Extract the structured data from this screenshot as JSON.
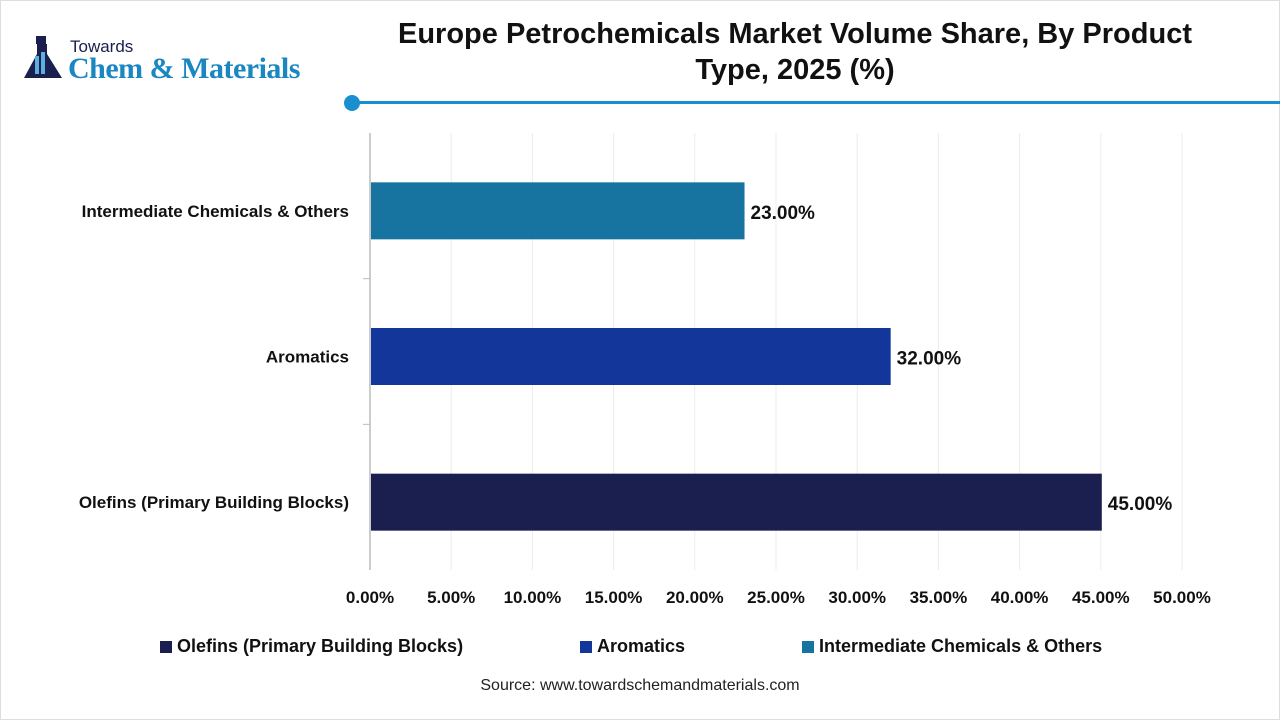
{
  "logo": {
    "line1": "Towards",
    "line2": "Chem & Materials"
  },
  "chart_data": {
    "type": "bar",
    "orientation": "horizontal",
    "title": "Europe Petrochemicals Market Volume Share, By Product Type, 2025 (%)",
    "categories": [
      "Olefins (Primary Building Blocks)",
      "Aromatics",
      "Intermediate Chemicals & Others"
    ],
    "values": [
      45,
      32,
      23
    ],
    "data_labels": [
      "45.00%",
      "32.00%",
      "23.00%"
    ],
    "colors": [
      "#1b1f4f",
      "#13369a",
      "#17739f"
    ],
    "xlim": [
      0,
      50
    ],
    "x_ticks": [
      "0.00%",
      "5.00%",
      "10.00%",
      "15.00%",
      "20.00%",
      "25.00%",
      "30.00%",
      "35.00%",
      "40.00%",
      "45.00%",
      "50.00%"
    ],
    "grid": true,
    "legend": {
      "placement": "bottom",
      "entries": [
        "Olefins (Primary Building Blocks)",
        "Aromatics",
        "Intermediate Chemicals & Others"
      ]
    }
  },
  "source": "Source: www.towardschemandmaterials.com",
  "accent": "#1a8fd0"
}
